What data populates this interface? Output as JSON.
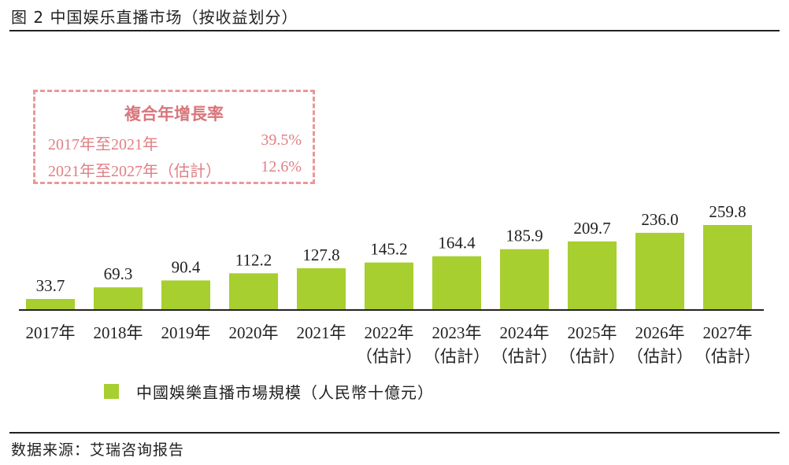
{
  "figure": {
    "title": "图 2 中国娱乐直播市场（按收益划分）",
    "source": "数据来源：艾瑞咨询报告"
  },
  "cagr": {
    "title": "複合年增長率",
    "rows": [
      {
        "label": "2017年至2021年",
        "value": "39.5%"
      },
      {
        "label": "2021年至2027年（估計）",
        "value": "12.6%"
      }
    ]
  },
  "legend": {
    "label": "中國娛樂直播市場規模（人民幣十億元）",
    "color": "#a7cf2f"
  },
  "chart_data": {
    "type": "bar",
    "title": "",
    "xlabel": "",
    "ylabel": "",
    "categories": [
      "2017年",
      "2018年",
      "2019年",
      "2020年",
      "2021年",
      "2022年",
      "2023年",
      "2024年",
      "2025年",
      "2026年",
      "2027年"
    ],
    "category_sublabels": [
      "",
      "",
      "",
      "",
      "",
      "（估計）",
      "（估計）",
      "（估計）",
      "（估計）",
      "（估計）",
      "（估計）"
    ],
    "series": [
      {
        "name": "中國娛樂直播市場規模（人民幣十億元）",
        "values": [
          33.7,
          69.3,
          90.4,
          112.2,
          127.8,
          145.2,
          164.4,
          185.9,
          209.7,
          236.0,
          259.8
        ],
        "value_labels": [
          "33.7",
          "69.3",
          "90.4",
          "112.2",
          "127.8",
          "145.2",
          "164.4",
          "185.9",
          "209.7",
          "236.0",
          "259.8"
        ]
      }
    ],
    "ylim": [
      0,
      259.8
    ],
    "bar_color": "#a7cf2f",
    "axis_color": "#222222",
    "grid": false,
    "legend_position": "bottom"
  }
}
